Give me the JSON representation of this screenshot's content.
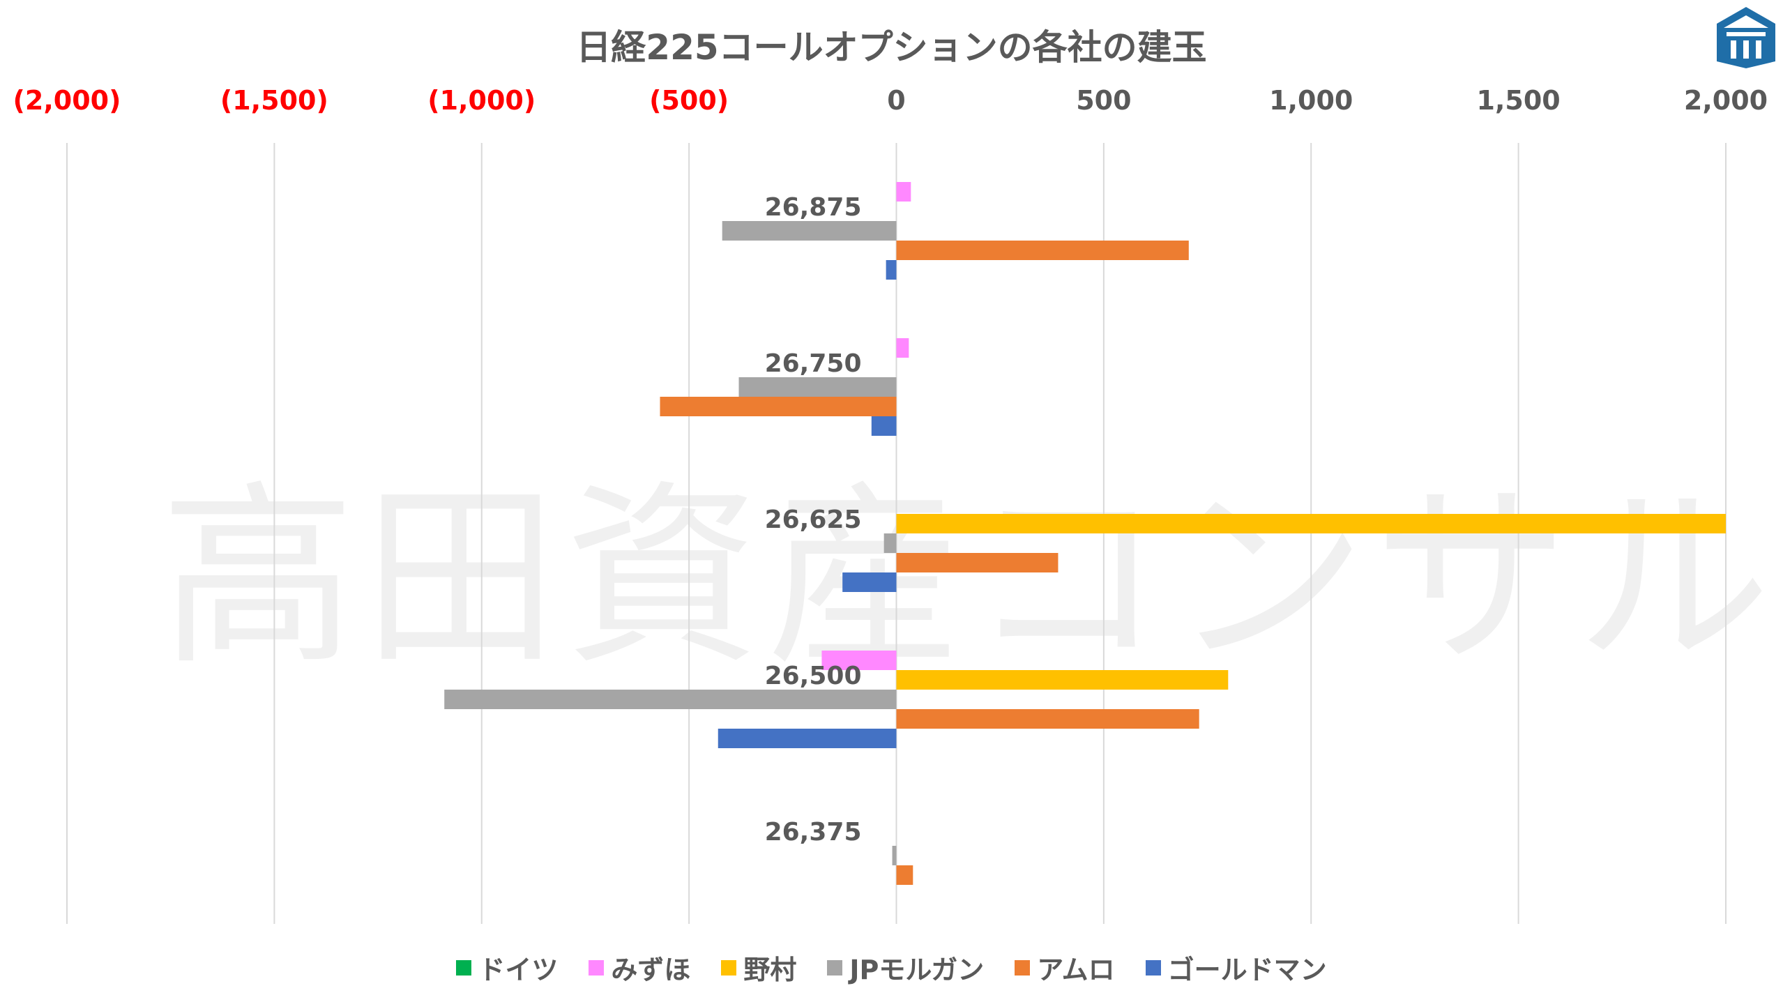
{
  "chart_data": {
    "type": "bar",
    "orientation": "horizontal",
    "title": "日経225コールオプションの各社の建玉",
    "x_tick_labels": [
      "(2,000)",
      "(1,500)",
      "(1,000)",
      "(500)",
      "0",
      "500",
      "1,000",
      "1,500",
      "2,000"
    ],
    "x_ticks": [
      -2000,
      -1500,
      -1000,
      -500,
      0,
      500,
      1000,
      1500,
      2000
    ],
    "xlim": [
      -2000,
      2000
    ],
    "negative_tick_color": "#FF0000",
    "positive_tick_color": "#595959",
    "grid": "vertical",
    "legend_position": "bottom",
    "categories": [
      "26,875",
      "26,750",
      "26,625",
      "26,500",
      "26,375"
    ],
    "series": [
      {
        "name": "ドイツ",
        "color": "#00B050",
        "values": [
          0,
          0,
          0,
          0,
          0
        ]
      },
      {
        "name": "みずほ",
        "color": "#FF88FF",
        "values": [
          35,
          30,
          0,
          -180,
          0
        ]
      },
      {
        "name": "野村",
        "color": "#FFC000",
        "values": [
          0,
          0,
          2000,
          800,
          0
        ]
      },
      {
        "name": "JPモルガン",
        "color": "#A5A5A5",
        "values": [
          -420,
          -380,
          -30,
          -1090,
          -10
        ]
      },
      {
        "name": "アムロ",
        "color": "#ED7D31",
        "values": [
          705,
          -570,
          390,
          730,
          40
        ]
      },
      {
        "name": "ゴールドマン",
        "color": "#4472C4",
        "values": [
          -25,
          -60,
          -130,
          -430,
          0
        ]
      }
    ]
  },
  "watermark": "高田資産コンサル",
  "logo": {
    "icon": "house-logo-icon",
    "color": "#1F6EA8"
  }
}
